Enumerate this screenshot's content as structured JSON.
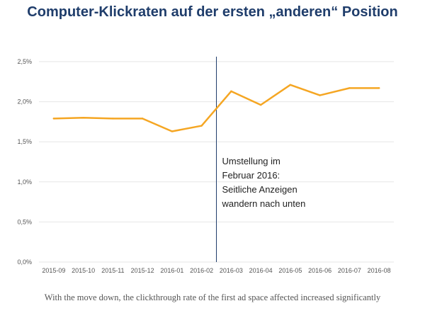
{
  "title": "Computer-Klickraten auf der ersten „anderen“ Position",
  "caption": "With the move down, the clickthrough rate of the first ad space affected increased significantly",
  "colors": {
    "line": "#f5a623",
    "marker": "#1f3d6b",
    "grid": "#e6e6e6",
    "title": "#1f3d6b"
  },
  "chart_data": {
    "type": "line",
    "categories": [
      "2015-09",
      "2015-10",
      "2015-11",
      "2015-12",
      "2016-01",
      "2016-02",
      "2016-03",
      "2016-04",
      "2016-05",
      "2016-06",
      "2016-07",
      "2016-08"
    ],
    "series": [
      {
        "values": [
          1.79,
          1.8,
          1.79,
          1.79,
          1.63,
          1.7,
          2.13,
          1.96,
          2.21,
          2.08,
          2.17,
          2.17
        ]
      }
    ],
    "y_ticks": [
      "0,0%",
      "0,5%",
      "1,0%",
      "1,5%",
      "2,0%",
      "2,5%"
    ],
    "y_tick_values": [
      0,
      0.5,
      1.0,
      1.5,
      2.0,
      2.5
    ],
    "ylim": [
      0,
      2.5
    ],
    "grid": true,
    "annotation": {
      "between": [
        "2016-02",
        "2016-03"
      ],
      "lines": [
        "Umstellung im",
        "Februar 2016:",
        "Seitliche Anzeigen",
        "wandern nach unten"
      ]
    }
  }
}
